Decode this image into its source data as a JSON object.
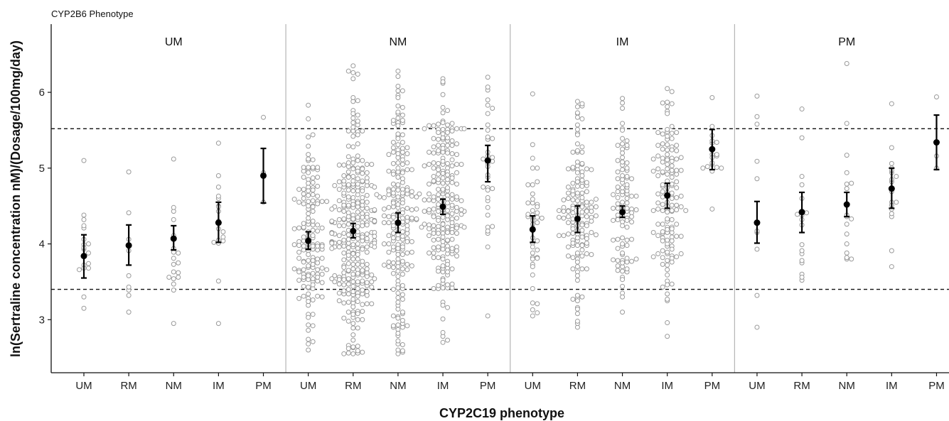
{
  "chart_data": {
    "type": "scatter",
    "top_label": "CYP2B6 Phenotype",
    "xlabel": "CYP2C19 phenotype",
    "ylabel": "ln(Sertraline concentration nM)/(Dosage/100mg/day)",
    "ylim": [
      2.3,
      6.9
    ],
    "yticks": [
      3,
      4,
      5,
      6
    ],
    "reference_lines": [
      3.4,
      5.52
    ],
    "facets": [
      "UM",
      "NM",
      "IM",
      "PM"
    ],
    "categories": [
      "UM",
      "RM",
      "NM",
      "IM",
      "PM"
    ],
    "groups": [
      {
        "facet": "UM",
        "category": "UM",
        "n": 18,
        "min": 3.15,
        "max": 5.1,
        "mean": 3.84,
        "ci": [
          3.55,
          4.12
        ]
      },
      {
        "facet": "UM",
        "category": "RM",
        "n": 10,
        "min": 3.1,
        "max": 4.95,
        "mean": 3.98,
        "ci": [
          3.72,
          4.25
        ]
      },
      {
        "facet": "UM",
        "category": "NM",
        "n": 20,
        "min": 2.95,
        "max": 5.12,
        "mean": 4.07,
        "ci": [
          3.92,
          4.24
        ]
      },
      {
        "facet": "UM",
        "category": "IM",
        "n": 18,
        "min": 2.95,
        "max": 5.33,
        "mean": 4.28,
        "ci": [
          4.02,
          4.55
        ]
      },
      {
        "facet": "UM",
        "category": "PM",
        "n": 3,
        "min": 4.55,
        "max": 5.67,
        "mean": 4.9,
        "ci": [
          4.54,
          5.26
        ]
      },
      {
        "facet": "NM",
        "category": "UM",
        "n": 150,
        "min": 2.6,
        "max": 5.83,
        "mean": 4.04,
        "ci": [
          3.93,
          4.16
        ]
      },
      {
        "facet": "NM",
        "category": "RM",
        "n": 300,
        "min": 2.55,
        "max": 6.35,
        "mean": 4.17,
        "ci": [
          4.08,
          4.27
        ]
      },
      {
        "facet": "NM",
        "category": "NM",
        "n": 200,
        "min": 2.55,
        "max": 6.28,
        "mean": 4.28,
        "ci": [
          4.15,
          4.41
        ]
      },
      {
        "facet": "NM",
        "category": "IM",
        "n": 220,
        "min": 2.7,
        "max": 6.18,
        "mean": 4.49,
        "ci": [
          4.39,
          4.59
        ]
      },
      {
        "facet": "NM",
        "category": "PM",
        "n": 35,
        "min": 3.05,
        "max": 6.2,
        "mean": 5.1,
        "ci": [
          4.82,
          5.3
        ]
      },
      {
        "facet": "IM",
        "category": "UM",
        "n": 45,
        "min": 3.05,
        "max": 5.98,
        "mean": 4.19,
        "ci": [
          4.02,
          4.37
        ]
      },
      {
        "facet": "IM",
        "category": "RM",
        "n": 150,
        "min": 2.9,
        "max": 5.88,
        "mean": 4.33,
        "ci": [
          4.15,
          4.5
        ]
      },
      {
        "facet": "IM",
        "category": "NM",
        "n": 100,
        "min": 3.1,
        "max": 5.92,
        "mean": 4.42,
        "ci": [
          4.35,
          4.5
        ]
      },
      {
        "facet": "IM",
        "category": "IM",
        "n": 140,
        "min": 2.78,
        "max": 6.05,
        "mean": 4.64,
        "ci": [
          4.47,
          4.8
        ]
      },
      {
        "facet": "IM",
        "category": "PM",
        "n": 18,
        "min": 4.46,
        "max": 5.93,
        "mean": 5.25,
        "ci": [
          4.98,
          5.51
        ]
      },
      {
        "facet": "PM",
        "category": "UM",
        "n": 10,
        "min": 2.9,
        "max": 5.95,
        "mean": 4.28,
        "ci": [
          4.01,
          4.56
        ]
      },
      {
        "facet": "PM",
        "category": "RM",
        "n": 18,
        "min": 3.52,
        "max": 5.78,
        "mean": 4.42,
        "ci": [
          4.15,
          4.68
        ]
      },
      {
        "facet": "PM",
        "category": "NM",
        "n": 18,
        "min": 3.8,
        "max": 6.38,
        "mean": 4.52,
        "ci": [
          4.36,
          4.68
        ]
      },
      {
        "facet": "PM",
        "category": "IM",
        "n": 18,
        "min": 3.7,
        "max": 5.85,
        "mean": 4.73,
        "ci": [
          4.47,
          5.0
        ]
      },
      {
        "facet": "PM",
        "category": "PM",
        "n": 3,
        "min": 5.0,
        "max": 5.94,
        "mean": 5.34,
        "ci": [
          4.98,
          5.7
        ]
      }
    ],
    "point_style": {
      "fill": "#ffffff",
      "stroke": "#9a9a9a"
    },
    "summary_color": "#000000",
    "divider_color": "#b5b5b5",
    "grid": false
  }
}
